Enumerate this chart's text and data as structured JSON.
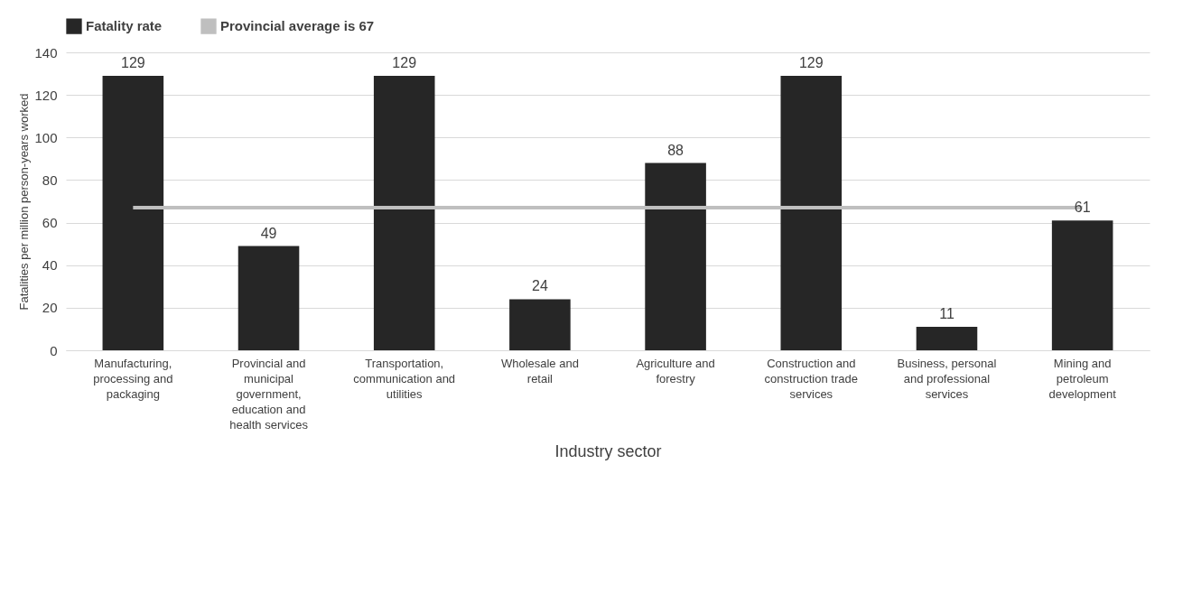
{
  "chart_data": {
    "type": "bar",
    "xlabel": "Industry sector",
    "ylabel": "Fatalities per million person-years worked",
    "categories": [
      "Manufacturing, processing and packaging",
      "Provincial and municipal government, education and health services",
      "Transportation, communication and utilities",
      "Wholesale and retail",
      "Agriculture and forestry",
      "Construction and construction trade services",
      "Business, personal and professional services",
      "Mining and petroleum development"
    ],
    "series": [
      {
        "name": "Fatality rate",
        "color": "#262626",
        "values": [
          129,
          49,
          129,
          24,
          88,
          129,
          11,
          61
        ],
        "value_labels": [
          "129",
          "49",
          "129",
          "24",
          "88",
          "129",
          "11",
          "61"
        ]
      },
      {
        "name": "Provincial average is 67",
        "type": "line",
        "color": "#bfbfbf",
        "values": [
          67,
          67,
          67,
          67,
          67,
          67,
          67,
          67
        ]
      }
    ],
    "ylim": [
      0,
      140
    ],
    "yticks": [
      0,
      20,
      40,
      60,
      80,
      100,
      120,
      140
    ],
    "grid": "y",
    "legend": "top"
  }
}
